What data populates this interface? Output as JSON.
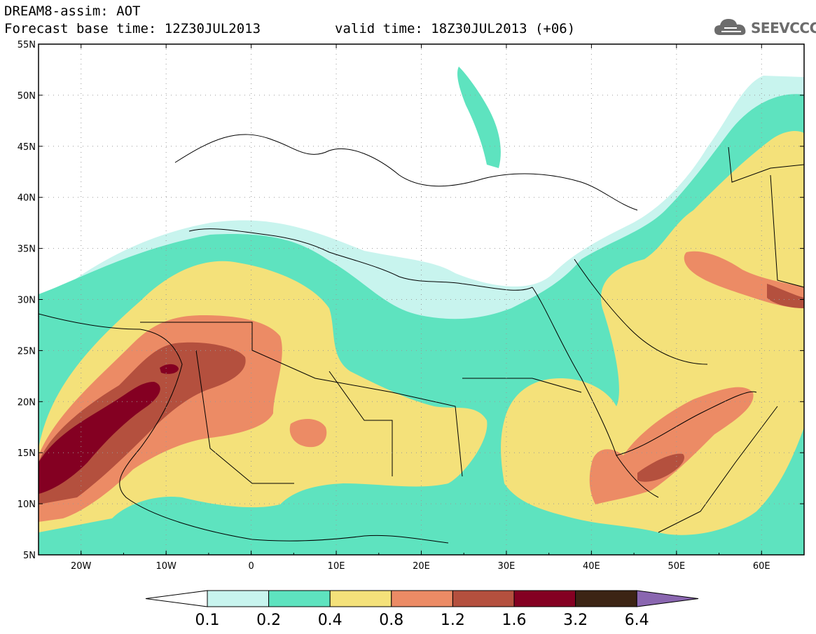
{
  "header": {
    "title_line1": "DREAM8-assim: AOT",
    "title_line2": "Forecast base time: 12Z30JUL2013",
    "valid_time": "valid time: 18Z30JUL2013 (+06)"
  },
  "logo": {
    "text": "SEEVCCC",
    "icon": "cloud-icon"
  },
  "map": {
    "lat_labels": [
      "55N",
      "50N",
      "45N",
      "40N",
      "35N",
      "30N",
      "25N",
      "20N",
      "15N",
      "10N",
      "5N"
    ],
    "lon_labels": [
      "20W",
      "10W",
      "0",
      "10E",
      "20E",
      "30E",
      "40E",
      "50E",
      "60E"
    ],
    "lat_range": [
      5,
      55
    ],
    "lon_range": [
      -25,
      65
    ],
    "grid": "dotted"
  },
  "colorbar": {
    "labels": [
      "0.1",
      "0.2",
      "0.4",
      "0.8",
      "1.2",
      "1.6",
      "3.2",
      "6.4"
    ],
    "colors": [
      "#ffffff",
      "#c8f4ee",
      "#5ee3bf",
      "#f4e17a",
      "#ec8b65",
      "#b4503e",
      "#840022",
      "#3c2414",
      "#8a66b0"
    ]
  },
  "colors": {
    "light": "#c8f4ee",
    "teal": "#5ee3bf",
    "yellow": "#f4e17a",
    "salmon": "#ec8b65",
    "rust": "#b4503e",
    "maroon": "#840022"
  }
}
